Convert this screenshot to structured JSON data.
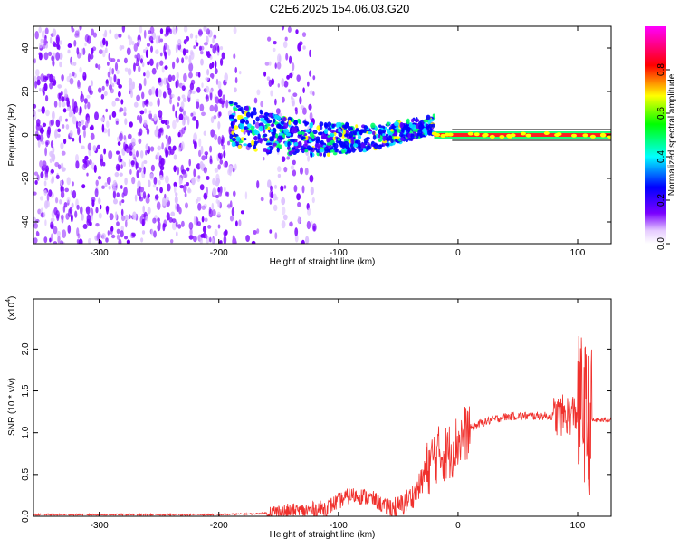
{
  "title": "C2E6.2025.154.06.03.G20",
  "colors": {
    "snr_line": "#f0302c",
    "colormap": [
      "#ffffff",
      "#e6ccff",
      "#7a00ff",
      "#0000ff",
      "#00ffff",
      "#00ff00",
      "#ffff00",
      "#ff0000",
      "#ff00ff"
    ]
  },
  "chart_data": [
    {
      "type": "heatmap",
      "xlabel": "Height of straight line (km)",
      "ylabel": "Frequency (Hz)",
      "xlim": [
        -355,
        128
      ],
      "ylim": [
        -50,
        50
      ],
      "xticks": [
        -300,
        -200,
        -100,
        0,
        100
      ],
      "yticks": [
        -40,
        -20,
        0,
        20,
        40
      ],
      "colorbar": {
        "label": "Normalized spectral amplitude",
        "range": [
          0.0,
          1.0
        ],
        "ticks": [
          0.0,
          0.2,
          0.4,
          0.6,
          0.8
        ]
      },
      "features": {
        "noise_region_x": [
          -355,
          -120
        ],
        "gap_x": [
          [
            -180,
            -160
          ],
          [
            -120,
            -100
          ]
        ],
        "spread_region_x": [
          -190,
          -20
        ],
        "central_line_x": [
          -20,
          128
        ],
        "central_line_freq": 0,
        "peak_line_amplitude": 0.9
      }
    },
    {
      "type": "line",
      "xlabel": "Height of straight line (km)",
      "ylabel": "SNR (10 * v/v)",
      "y_multiplier": "(x10",
      "y_multiplier_exp": "4",
      "xlim": [
        -355,
        128
      ],
      "ylim": [
        0,
        2.6
      ],
      "xticks": [
        -300,
        -200,
        -100,
        0,
        100
      ],
      "yticks": [
        0.0,
        0.5,
        1.0,
        1.5,
        2.0
      ],
      "ytick_labels": [
        "0.0",
        "0.5",
        "1.0",
        "1.5",
        "2.0"
      ],
      "series": [
        {
          "x": [
            -355,
            -300,
            -250,
            -200,
            -170,
            -150,
            -130,
            -110,
            -100,
            -90,
            -80,
            -70,
            -60,
            -50,
            -40,
            -35,
            -30,
            -25,
            -20,
            -15,
            -10,
            -5,
            0,
            10,
            20,
            30,
            40,
            50,
            60,
            70,
            80,
            90,
            95,
            100,
            102,
            105,
            108,
            110,
            115,
            120,
            128
          ],
          "y": [
            0.02,
            0.02,
            0.02,
            0.02,
            0.03,
            0.05,
            0.06,
            0.1,
            0.18,
            0.25,
            0.24,
            0.2,
            0.1,
            0.1,
            0.22,
            0.28,
            0.45,
            0.58,
            0.72,
            0.75,
            0.75,
            0.8,
            0.9,
            1.05,
            1.12,
            1.16,
            1.19,
            1.2,
            1.2,
            1.2,
            1.2,
            1.21,
            1.22,
            1.25,
            1.3,
            1.35,
            1.05,
            1.15,
            1.15,
            1.15,
            1.16
          ]
        }
      ]
    }
  ]
}
